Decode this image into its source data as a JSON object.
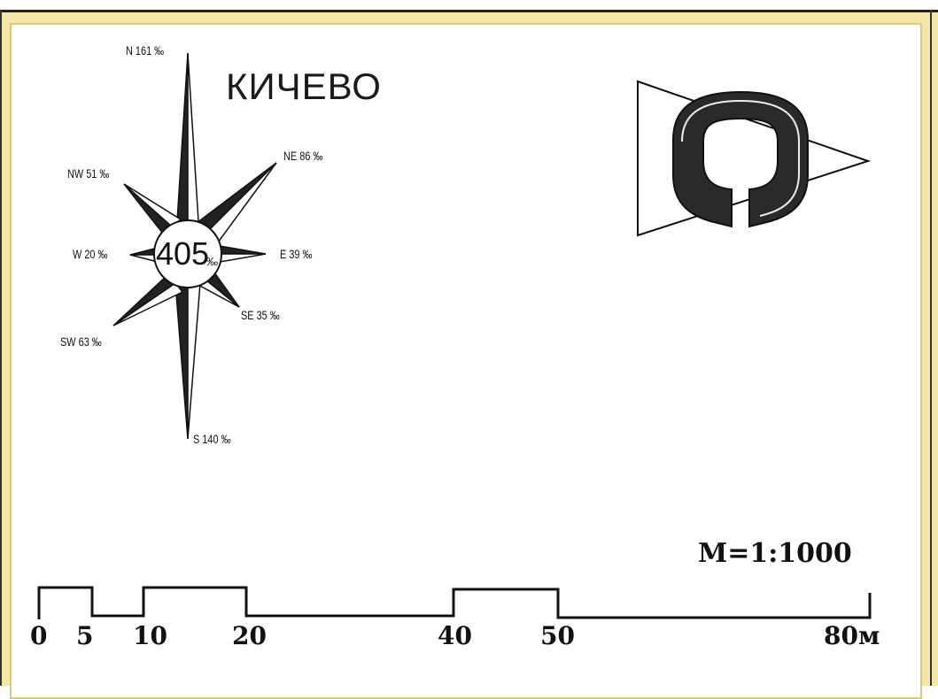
{
  "title": "КИЧЕВО",
  "wind_rose": {
    "center_value": "405",
    "center_unit": "‰",
    "directions": [
      {
        "label": "N 161 ‰",
        "value": 161
      },
      {
        "label": "NE 86 ‰",
        "value": 86
      },
      {
        "label": "E 39 ‰",
        "value": 39
      },
      {
        "label": "SE 35 ‰",
        "value": 35
      },
      {
        "label": "S 140 ‰",
        "value": 140
      },
      {
        "label": "SW 63 ‰",
        "value": 63
      },
      {
        "label": "W 20 ‰",
        "value": 20
      },
      {
        "label": "NW 51 ‰",
        "value": 51
      }
    ]
  },
  "scale": {
    "ratio_text": "M=1:1000",
    "ticks": [
      "0",
      "5",
      "10",
      "20",
      "40",
      "50",
      "80м"
    ]
  },
  "colors": {
    "frame": "#f3e6a6",
    "ink": "#222222"
  }
}
